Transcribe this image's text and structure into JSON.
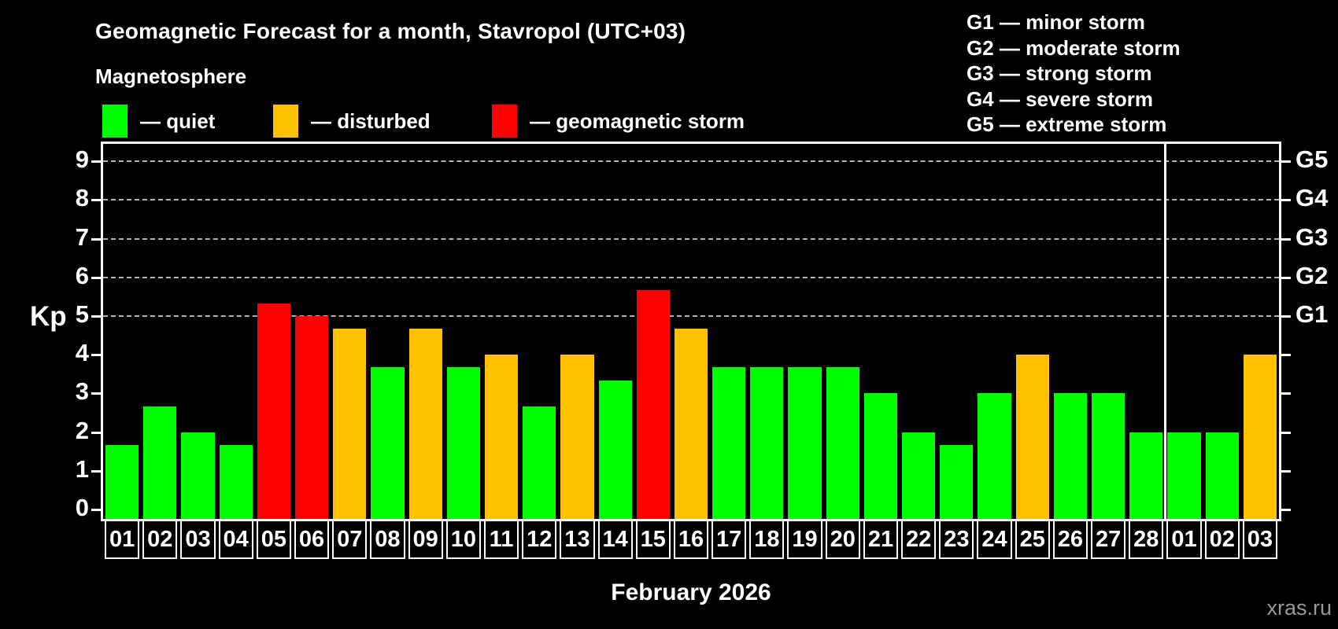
{
  "header": {
    "title": "Geomagnetic Forecast for a month, Stavropol (UTC+03)",
    "subtitle": "Magnetosphere"
  },
  "legend": {
    "items": [
      {
        "key": "quiet",
        "label": "— quiet",
        "color": "#00ff00"
      },
      {
        "key": "disturbed",
        "label": "— disturbed",
        "color": "#ffc000"
      },
      {
        "key": "storm",
        "label": "— geomagnetic storm",
        "color": "#ff0000"
      }
    ]
  },
  "storm_scale_legend": {
    "lines": [
      "G1 — minor storm",
      "G2 — moderate storm",
      "G3 — strong storm",
      "G4 — severe storm",
      "G5 — extreme storm"
    ]
  },
  "footer": {
    "xlabel": "February 2026",
    "watermark": "xras.ru"
  },
  "chart_data": {
    "type": "bar",
    "title": "Geomagnetic Forecast for a month, Stavropol (UTC+03)",
    "ylabel": "Kp",
    "xlabel": "February 2026",
    "ylim": [
      0,
      9.4
    ],
    "yticks": [
      0,
      1,
      2,
      3,
      4,
      5,
      6,
      7,
      8,
      9
    ],
    "grid": "horizontal dashed lines at storm levels only",
    "grid_levels": [
      5,
      6,
      7,
      8,
      9
    ],
    "right_axis_labels": [
      {
        "kp": 5,
        "label": "G1"
      },
      {
        "kp": 6,
        "label": "G2"
      },
      {
        "kp": 7,
        "label": "G3"
      },
      {
        "kp": 8,
        "label": "G4"
      },
      {
        "kp": 9,
        "label": "G5"
      }
    ],
    "categories": [
      "01",
      "02",
      "03",
      "04",
      "05",
      "06",
      "07",
      "08",
      "09",
      "10",
      "11",
      "12",
      "13",
      "14",
      "15",
      "16",
      "17",
      "18",
      "19",
      "20",
      "21",
      "22",
      "23",
      "24",
      "25",
      "26",
      "27",
      "28",
      "01",
      "02",
      "03"
    ],
    "values": [
      1.67,
      2.67,
      2.0,
      1.67,
      5.33,
      5.0,
      4.67,
      3.67,
      4.67,
      3.67,
      4.0,
      2.67,
      4.0,
      3.33,
      5.67,
      4.67,
      3.67,
      3.67,
      3.67,
      3.67,
      3.0,
      2.0,
      1.67,
      3.0,
      4.0,
      3.0,
      3.0,
      2.0,
      2.0,
      2.0,
      4.0
    ],
    "statuses": [
      "quiet",
      "quiet",
      "quiet",
      "quiet",
      "storm",
      "storm",
      "disturbed",
      "quiet",
      "disturbed",
      "quiet",
      "disturbed",
      "quiet",
      "disturbed",
      "quiet",
      "storm",
      "disturbed",
      "quiet",
      "quiet",
      "quiet",
      "quiet",
      "quiet",
      "quiet",
      "quiet",
      "quiet",
      "disturbed",
      "quiet",
      "quiet",
      "quiet",
      "quiet",
      "quiet",
      "disturbed"
    ],
    "status_colors": {
      "quiet": "#00ff00",
      "disturbed": "#ffc000",
      "storm": "#ff0000"
    },
    "month_separator_after": 28,
    "legend_position": "top-left"
  }
}
